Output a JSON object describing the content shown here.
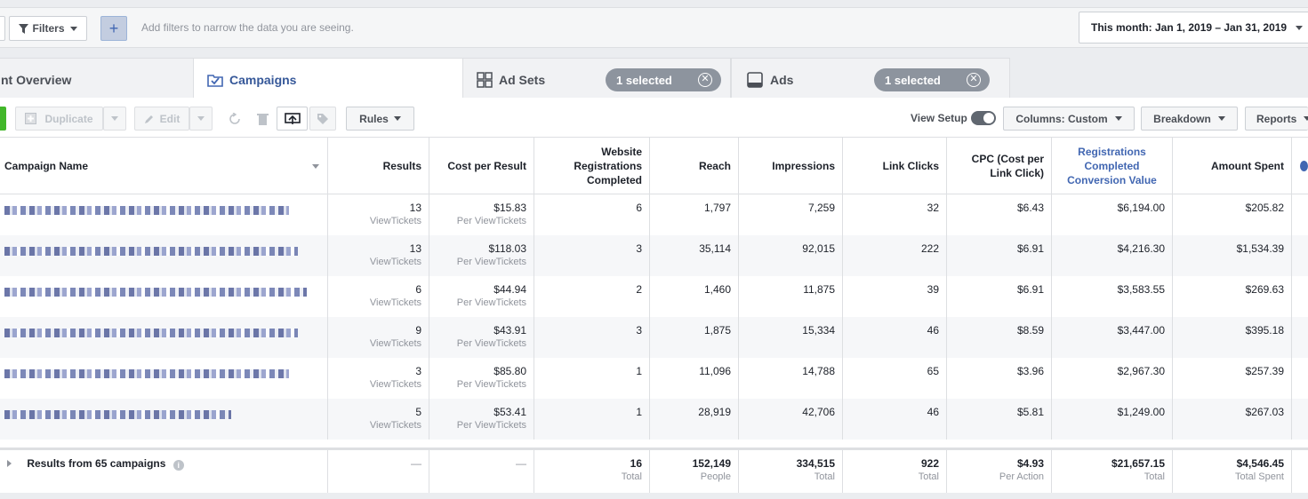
{
  "filterbar": {
    "filters_label": "Filters",
    "add_label": "+",
    "hint": "Add filters to narrow the data you are seeing.",
    "date_range": "This month: Jan 1, 2019 – Jan 31, 2019"
  },
  "tabs": {
    "overview": "nt Overview",
    "campaigns": "Campaigns",
    "adsets": "Ad Sets",
    "adsets_selected": "1 selected",
    "ads": "Ads",
    "ads_selected": "1 selected"
  },
  "toolbar": {
    "duplicate": "Duplicate",
    "edit": "Edit",
    "rules": "Rules",
    "view_setup": "View Setup",
    "columns": "Columns: Custom",
    "breakdown": "Breakdown",
    "reports": "Reports"
  },
  "table": {
    "headers": {
      "name": "Campaign Name",
      "results": "Results",
      "cpr": "Cost per Result",
      "wrc": "Website Registrations Completed",
      "reach": "Reach",
      "impressions": "Impressions",
      "clicks": "Link Clicks",
      "cpc": "CPC (Cost per Link Click)",
      "rcv": "Registrations Completed Conversion Value",
      "spent": "Amount Spent"
    },
    "rows": [
      {
        "results": "13",
        "results_sub": "ViewTickets",
        "cpr": "$15.83",
        "cpr_sub": "Per ViewTickets",
        "wrc": "6",
        "reach": "1,797",
        "impressions": "7,259",
        "clicks": "32",
        "cpc": "$6.43",
        "rcv": "$6,194.00",
        "spent": "$205.82"
      },
      {
        "results": "13",
        "results_sub": "ViewTickets",
        "cpr": "$118.03",
        "cpr_sub": "Per ViewTickets",
        "wrc": "3",
        "reach": "35,114",
        "impressions": "92,015",
        "clicks": "222",
        "cpc": "$6.91",
        "rcv": "$4,216.30",
        "spent": "$1,534.39"
      },
      {
        "results": "6",
        "results_sub": "ViewTickets",
        "cpr": "$44.94",
        "cpr_sub": "Per ViewTickets",
        "wrc": "2",
        "reach": "1,460",
        "impressions": "11,875",
        "clicks": "39",
        "cpc": "$6.91",
        "rcv": "$3,583.55",
        "spent": "$269.63"
      },
      {
        "results": "9",
        "results_sub": "ViewTickets",
        "cpr": "$43.91",
        "cpr_sub": "Per ViewTickets",
        "wrc": "3",
        "reach": "1,875",
        "impressions": "15,334",
        "clicks": "46",
        "cpc": "$8.59",
        "rcv": "$3,447.00",
        "spent": "$395.18"
      },
      {
        "results": "3",
        "results_sub": "ViewTickets",
        "cpr": "$85.80",
        "cpr_sub": "Per ViewTickets",
        "wrc": "1",
        "reach": "11,096",
        "impressions": "14,788",
        "clicks": "65",
        "cpc": "$3.96",
        "rcv": "$2,967.30",
        "spent": "$257.39"
      },
      {
        "results": "5",
        "results_sub": "ViewTickets",
        "cpr": "$53.41",
        "cpr_sub": "Per ViewTickets",
        "wrc": "1",
        "reach": "28,919",
        "impressions": "42,706",
        "clicks": "46",
        "cpc": "$5.81",
        "rcv": "$1,249.00",
        "spent": "$267.03"
      }
    ],
    "footer": {
      "label": "Results from 65 campaigns",
      "results": "—",
      "cpr": "—",
      "wrc": "16",
      "wrc_sub": "Total",
      "reach": "152,149",
      "reach_sub": "People",
      "impressions": "334,515",
      "impressions_sub": "Total",
      "clicks": "922",
      "clicks_sub": "Total",
      "cpc": "$4.93",
      "cpc_sub": "Per Action",
      "rcv": "$21,657.15",
      "rcv_sub": "Total",
      "spent": "$4,546.45",
      "spent_sub": "Total Spent"
    }
  }
}
